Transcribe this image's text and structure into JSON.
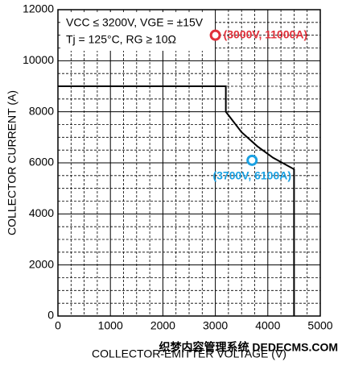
{
  "chart_data": {
    "type": "line",
    "x_label": "COLLECTOR-EMITTER VOLTAGE (V)",
    "y_label": "COLLECTOR CURRENT (A)",
    "annotations": [
      "VCC ≤ 3200V, VGE = ±15V",
      "Tj = 125°C, RG ≥ 10Ω"
    ],
    "series": [
      {
        "color": "#000000",
        "x": [
          0,
          3200,
          3200,
          3500,
          3800,
          4100,
          4500,
          4500
        ],
        "values": [
          9000,
          9000,
          8000,
          7200,
          6650,
          6200,
          5750,
          0
        ]
      }
    ],
    "points": [
      {
        "x": 3000,
        "y": 11000,
        "label": "(3000V, 11000A)",
        "color": "#e0303a"
      },
      {
        "x": 3700,
        "y": 6100,
        "label": "(3700V, 6100A)",
        "color": "#1ba1e2"
      }
    ],
    "xlim": [
      0,
      5000
    ],
    "xticks": [
      0,
      1000,
      2000,
      3000,
      4000,
      5000
    ],
    "ylim": [
      0,
      12000
    ],
    "yticks": [
      0,
      2000,
      4000,
      6000,
      8000,
      10000,
      12000
    ],
    "minor_xticks": [
      250,
      500,
      750,
      1250,
      1500,
      1750,
      2250,
      2500,
      2750,
      3250,
      3500,
      3750,
      4250,
      4500,
      4750
    ],
    "minor_yticks": [
      500,
      1000,
      1500,
      2500,
      3000,
      3500,
      4500,
      5000,
      5500,
      6500,
      7000,
      7500,
      8500,
      9000,
      9500,
      10500,
      11000,
      11500
    ],
    "grid": true,
    "watermark": "织梦内容管理系统 DEDECMS.COM"
  }
}
